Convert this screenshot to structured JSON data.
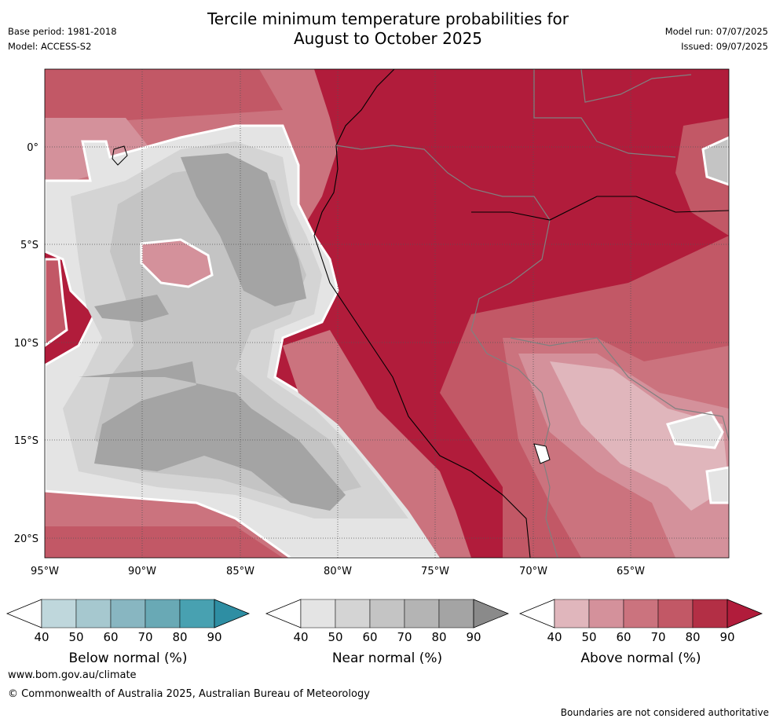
{
  "title_line1": "Tercile minimum temperature probabilities for",
  "title_line2": "August to October 2025",
  "base_period": "Base period: 1981-2018",
  "model": "Model: ACCESS-S2",
  "model_run": "Model run: 07/07/2025",
  "issued": "Issued: 09/07/2025",
  "lat_labels": [
    "0°",
    "5°S",
    "10°S",
    "15°S",
    "20°S"
  ],
  "lon_labels": [
    "95°W",
    "90°W",
    "85°W",
    "80°W",
    "75°W",
    "70°W",
    "65°W"
  ],
  "colorbars": [
    {
      "caption": "Below normal (%)",
      "ticks": [
        "40",
        "50",
        "60",
        "70",
        "80",
        "90"
      ],
      "colors": [
        "#bfd7dc",
        "#a6c8cf",
        "#88b6c1",
        "#69a9b5",
        "#48a1b1",
        "#2e8ea3"
      ]
    },
    {
      "caption": "Near normal (%)",
      "ticks": [
        "40",
        "50",
        "60",
        "70",
        "80",
        "90"
      ],
      "colors": [
        "#e4e4e4",
        "#d4d4d4",
        "#c4c4c4",
        "#b4b4b4",
        "#a4a4a4",
        "#8a8a8a"
      ]
    },
    {
      "caption": "Above normal (%)",
      "ticks": [
        "40",
        "50",
        "60",
        "70",
        "80",
        "90"
      ],
      "colors": [
        "#e0b6bc",
        "#d4919b",
        "#cb737e",
        "#c25866",
        "#b32f45",
        "#b11c3b"
      ]
    }
  ],
  "footer_url": "www.bom.gov.au/climate",
  "footer_copyright": "© Commonwealth of Australia 2025, Australian Bureau of Meteorology",
  "disclaimer": "Boundaries are not considered authoritative"
}
